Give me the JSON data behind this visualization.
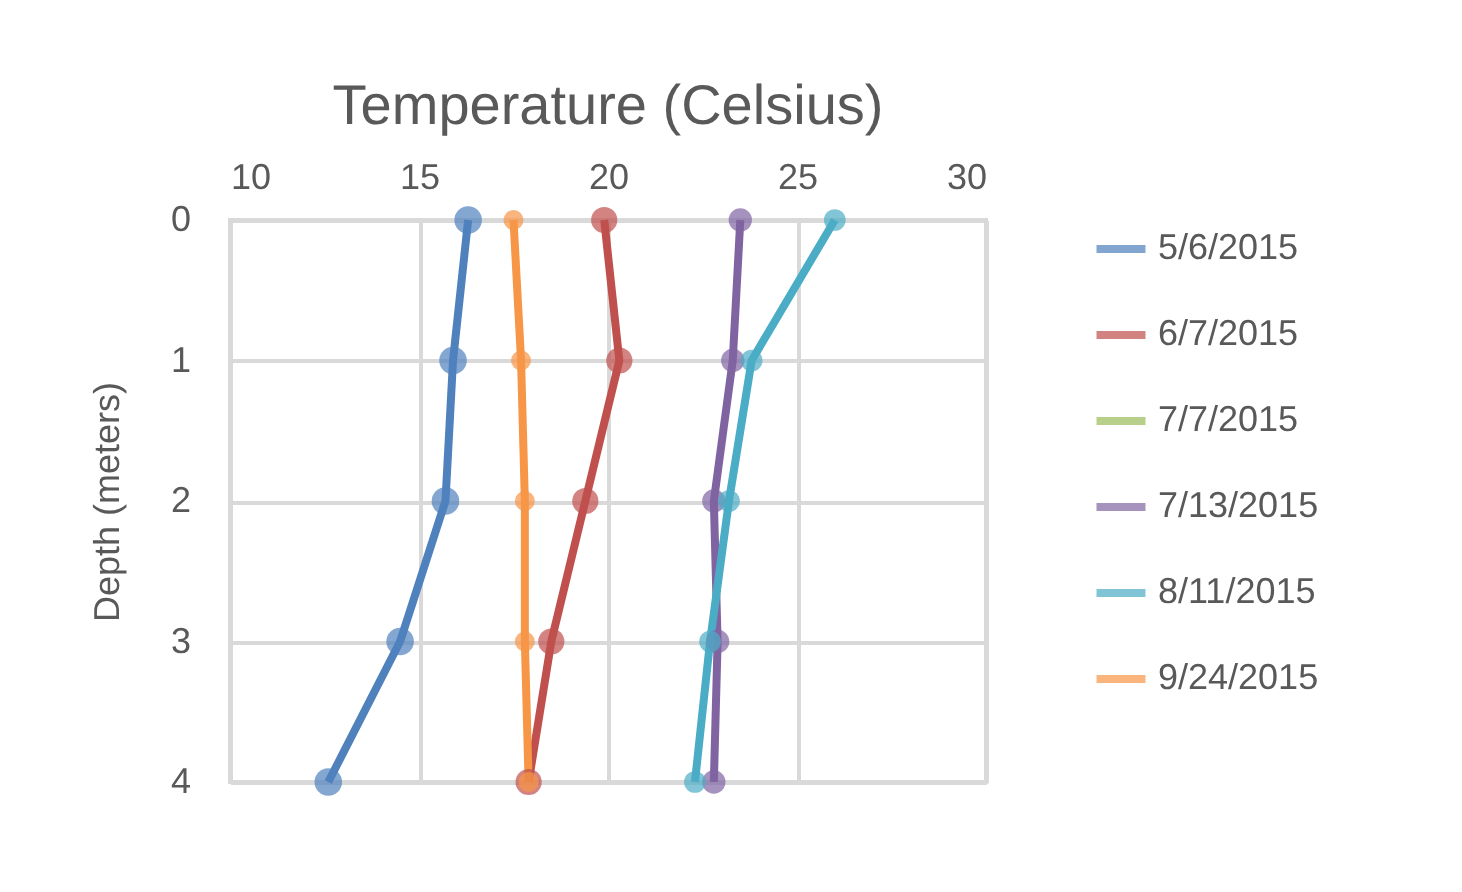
{
  "chart_data": {
    "type": "line",
    "orientation": "horizontal",
    "title": "Temperature (Celsius)",
    "ylabel": "Depth (meters)",
    "categories": [
      "0",
      "1",
      "2",
      "3",
      "4"
    ],
    "xlim": [
      10,
      30
    ],
    "xticks": [
      10,
      15,
      20,
      25,
      30
    ],
    "grid": true,
    "legend": "right",
    "marker": "circle",
    "series": [
      {
        "name": "5/6/2015",
        "color": "#4f81bd",
        "values": [
          16.3,
          15.9,
          15.7,
          14.5,
          12.6
        ]
      },
      {
        "name": "6/7/2015",
        "color": "#c0504d",
        "values": [
          19.9,
          20.3,
          19.4,
          18.5,
          17.9
        ]
      },
      {
        "name": "7/7/2015",
        "color": "#9bbb59",
        "values": [
          null,
          null,
          null,
          null,
          null
        ]
      },
      {
        "name": "7/13/2015",
        "color": "#8064a2",
        "values": [
          23.5,
          23.3,
          22.8,
          22.9,
          22.8
        ]
      },
      {
        "name": "8/11/2015",
        "color": "#4bacc6",
        "values": [
          26.0,
          23.8,
          23.2,
          22.7,
          22.3
        ]
      },
      {
        "name": "9/24/2015",
        "color": "#f79646",
        "values": [
          17.5,
          17.7,
          17.8,
          17.8,
          17.9
        ]
      }
    ]
  }
}
